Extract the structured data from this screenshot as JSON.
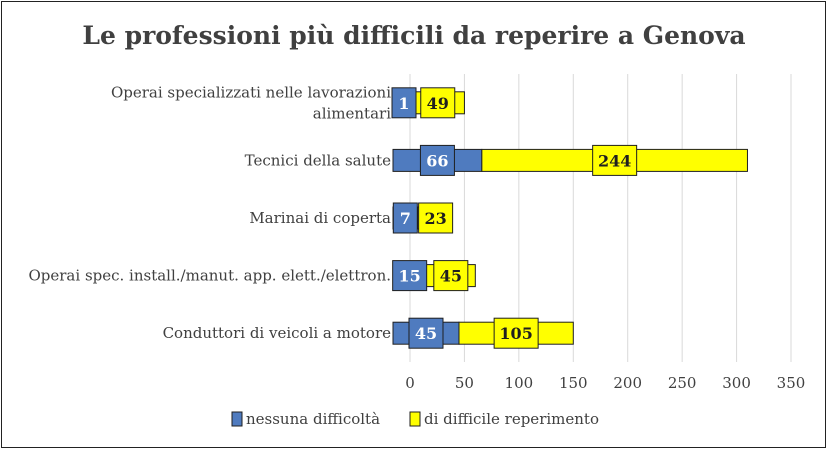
{
  "chart_data": {
    "type": "bar",
    "orientation": "horizontal",
    "stacked": true,
    "title": "Le professioni più difficili da reperire a Genova",
    "categories": [
      "Operai specializzati nelle lavorazioni alimentari",
      "Tecnici della salute",
      "Marinai di coperta",
      "Operai spec. install./manut. app. elett./elettron.",
      "Conduttori di veicoli a motore"
    ],
    "category_lines": [
      [
        "Operai specializzati nelle lavorazioni",
        "alimentari"
      ],
      [
        "Tecnici della salute"
      ],
      [
        "Marinai di coperta"
      ],
      [
        "Operai spec. install./manut. app. elett./elettron."
      ],
      [
        "Conduttori di veicoli a motore"
      ]
    ],
    "series": [
      {
        "name": "nessuna difficoltà",
        "values": [
          1,
          66,
          7,
          15,
          45
        ],
        "color": "#4F7BBF"
      },
      {
        "name": "di difficile reperimento",
        "values": [
          49,
          244,
          23,
          45,
          105
        ],
        "color": "#FFFF00"
      }
    ],
    "x_ticks": [
      0,
      50,
      100,
      150,
      200,
      250,
      300,
      350
    ],
    "xlim": [
      0,
      350
    ],
    "grid": "vertical",
    "legend_position": "bottom"
  }
}
